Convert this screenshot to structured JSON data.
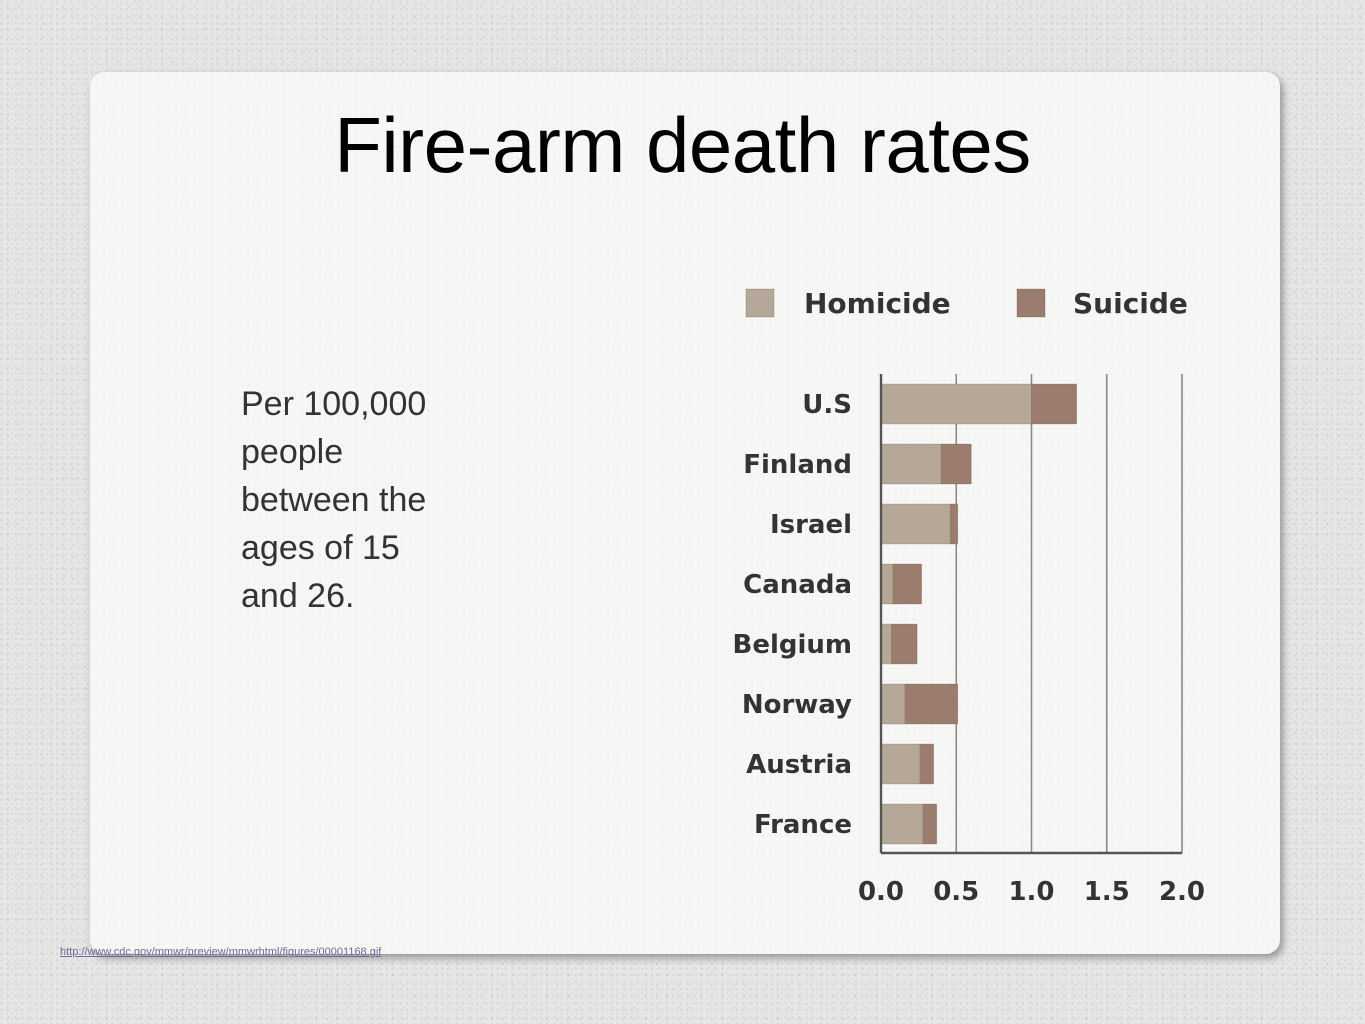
{
  "slide": {
    "title": "Fire-arm death rates",
    "note": "Per 100,000 people between the ages of 15 and 26.",
    "source_link": "http://www.cdc.gov/mmwr/preview/mmwrhtml/figures/00001168.gif"
  },
  "chart_data": {
    "type": "bar",
    "orientation": "horizontal",
    "stacked": true,
    "categories": [
      "U.S",
      "Finland",
      "Israel",
      "Canada",
      "Belgium",
      "Norway",
      "Austria",
      "France"
    ],
    "series": [
      {
        "name": "Homicide",
        "values": [
          1.0,
          0.4,
          0.46,
          0.08,
          0.07,
          0.16,
          0.26,
          0.28
        ],
        "color": "#b5a898"
      },
      {
        "name": "Suicide",
        "values": [
          0.3,
          0.2,
          0.05,
          0.19,
          0.17,
          0.35,
          0.09,
          0.09
        ],
        "color": "#9b7c6e"
      }
    ],
    "x_ticks": [
      "0.0",
      "0.5",
      "1.0",
      "1.5",
      "2.0"
    ],
    "xlim": [
      0,
      2.0
    ],
    "grid": "vertical",
    "legend_position": "top"
  }
}
